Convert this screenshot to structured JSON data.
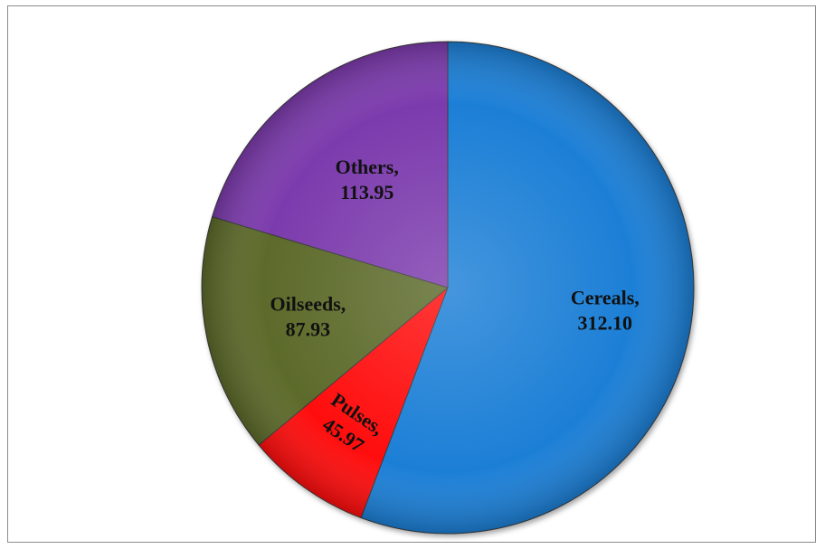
{
  "chart_data": {
    "type": "pie",
    "title": "",
    "slices": [
      {
        "label": "Cereals",
        "value": 312.1,
        "value_text": "312.10",
        "color": "#1c7fd6"
      },
      {
        "label": "Pulses",
        "value": 45.97,
        "value_text": "45.97",
        "color": "#ff0d0d"
      },
      {
        "label": "Oilseeds",
        "value": 87.93,
        "value_text": "87.93",
        "color": "#5b6a2a"
      },
      {
        "label": "Others",
        "value": 113.95,
        "value_text": "113.95",
        "color": "#7b3aad"
      }
    ],
    "legend": "none",
    "start": "12 o'clock, clockwise"
  }
}
